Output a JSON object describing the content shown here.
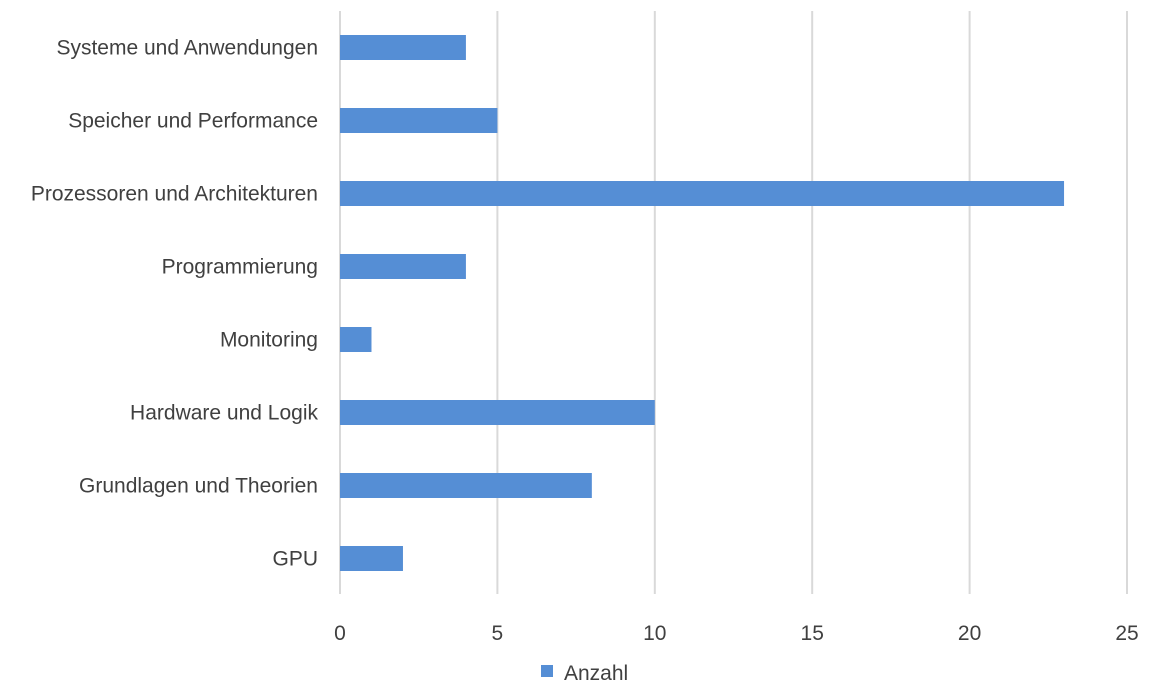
{
  "chart_data": {
    "type": "bar",
    "orientation": "horizontal",
    "categories": [
      "Systeme und Anwendungen",
      "Speicher und Performance",
      "Prozessoren und Architekturen",
      "Programmierung",
      "Monitoring",
      "Hardware und Logik",
      "Grundlagen und Theorien",
      "GPU"
    ],
    "series": [
      {
        "name": "Anzahl",
        "color": "#558ED5",
        "values": [
          4,
          5,
          23,
          4,
          1,
          10,
          8,
          2
        ]
      }
    ],
    "xlim": [
      0,
      25
    ],
    "xticks": [
      "0",
      "5",
      "10",
      "15",
      "20",
      "25"
    ],
    "title": "",
    "xlabel": "",
    "ylabel": "",
    "grid": "vertical",
    "legend": "bottom"
  }
}
